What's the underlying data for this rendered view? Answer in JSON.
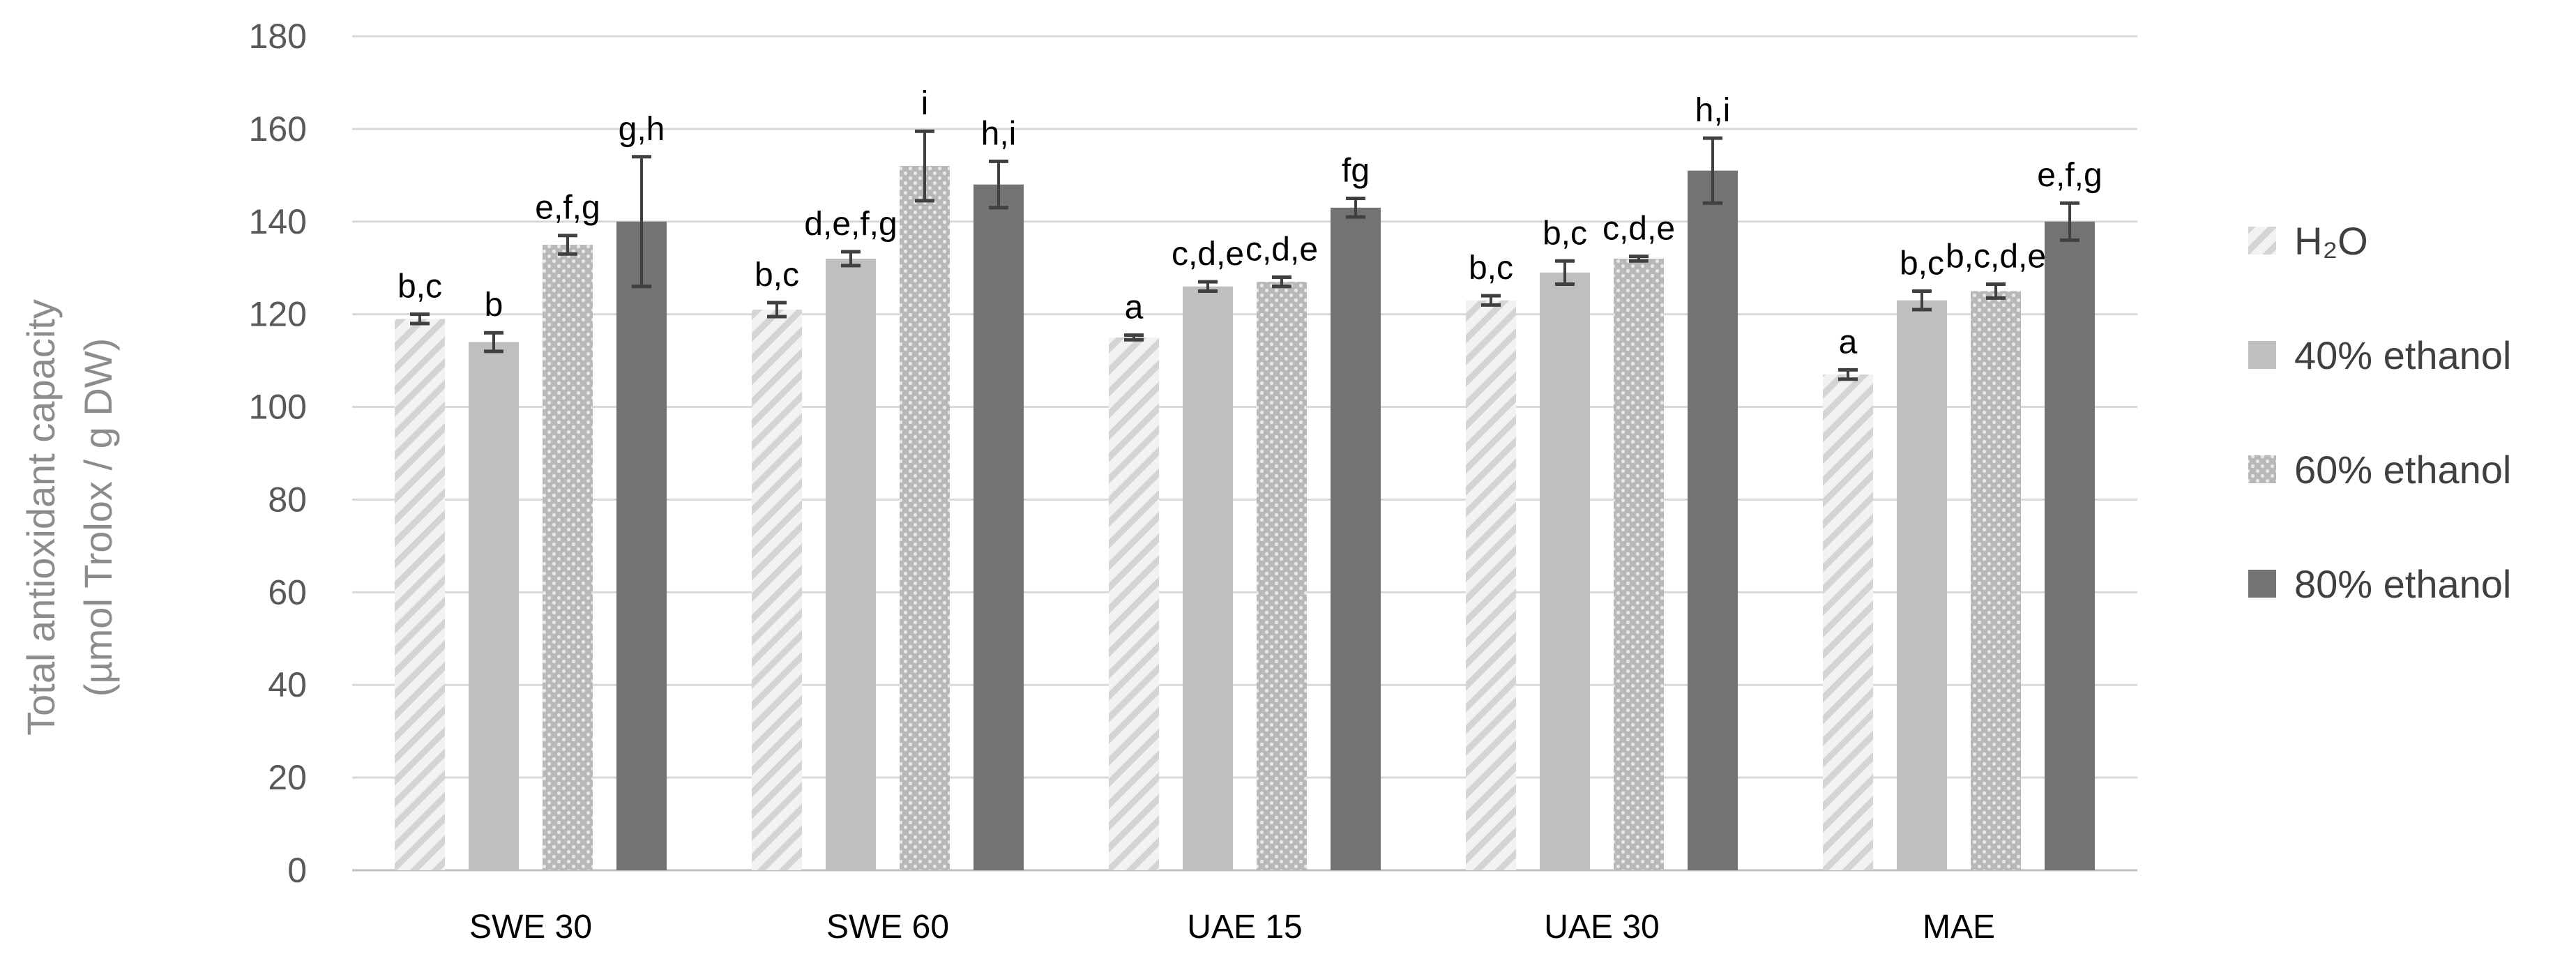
{
  "chart_data": {
    "type": "bar",
    "title": "",
    "xlabel": "",
    "ylabel_line1": "Total antioxidant capacity",
    "ylabel_line2": "(µmol Trolox / g DW)",
    "ylim": [
      0,
      180
    ],
    "yticks": [
      "0",
      "20",
      "40",
      "60",
      "80",
      "100",
      "120",
      "140",
      "160",
      "180"
    ],
    "grid": true,
    "legend_position": "right",
    "categories": [
      "SWE 30",
      "SWE 60",
      "UAE 15",
      "UAE 30",
      "MAE"
    ],
    "series": [
      {
        "name": "H₂O",
        "pattern": "hatch",
        "color": "#d9d9d9",
        "values": [
          119,
          121,
          115,
          123,
          107
        ],
        "errors": [
          1,
          1.5,
          0.5,
          1,
          1
        ],
        "labels": [
          "b,c",
          "b,c",
          "a",
          "b,c",
          "a"
        ]
      },
      {
        "name": "40% ethanol",
        "pattern": "solid",
        "color": "#bfbfbf",
        "values": [
          114,
          132,
          126,
          129,
          123
        ],
        "errors": [
          2,
          1.5,
          1,
          2.5,
          2
        ],
        "labels": [
          "b",
          "d,e,f,g",
          "c,d,e",
          "b,c",
          "b,c"
        ]
      },
      {
        "name": "60% ethanol",
        "pattern": "dots",
        "color": "#a6a6a6",
        "values": [
          135,
          152,
          127,
          132,
          125
        ],
        "errors": [
          2,
          7.5,
          1,
          0.5,
          1.5
        ],
        "labels": [
          "e,f,g",
          "i",
          "c,d,e",
          "c,d,e",
          "b,c,d,e"
        ]
      },
      {
        "name": "80% ethanol",
        "pattern": "solid",
        "color": "#737373",
        "values": [
          140,
          148,
          143,
          151,
          140
        ],
        "errors": [
          14,
          5,
          2,
          7,
          4
        ],
        "labels": [
          "g,h",
          "h,i",
          "fg",
          "h,i",
          "e,f,g"
        ]
      }
    ]
  }
}
